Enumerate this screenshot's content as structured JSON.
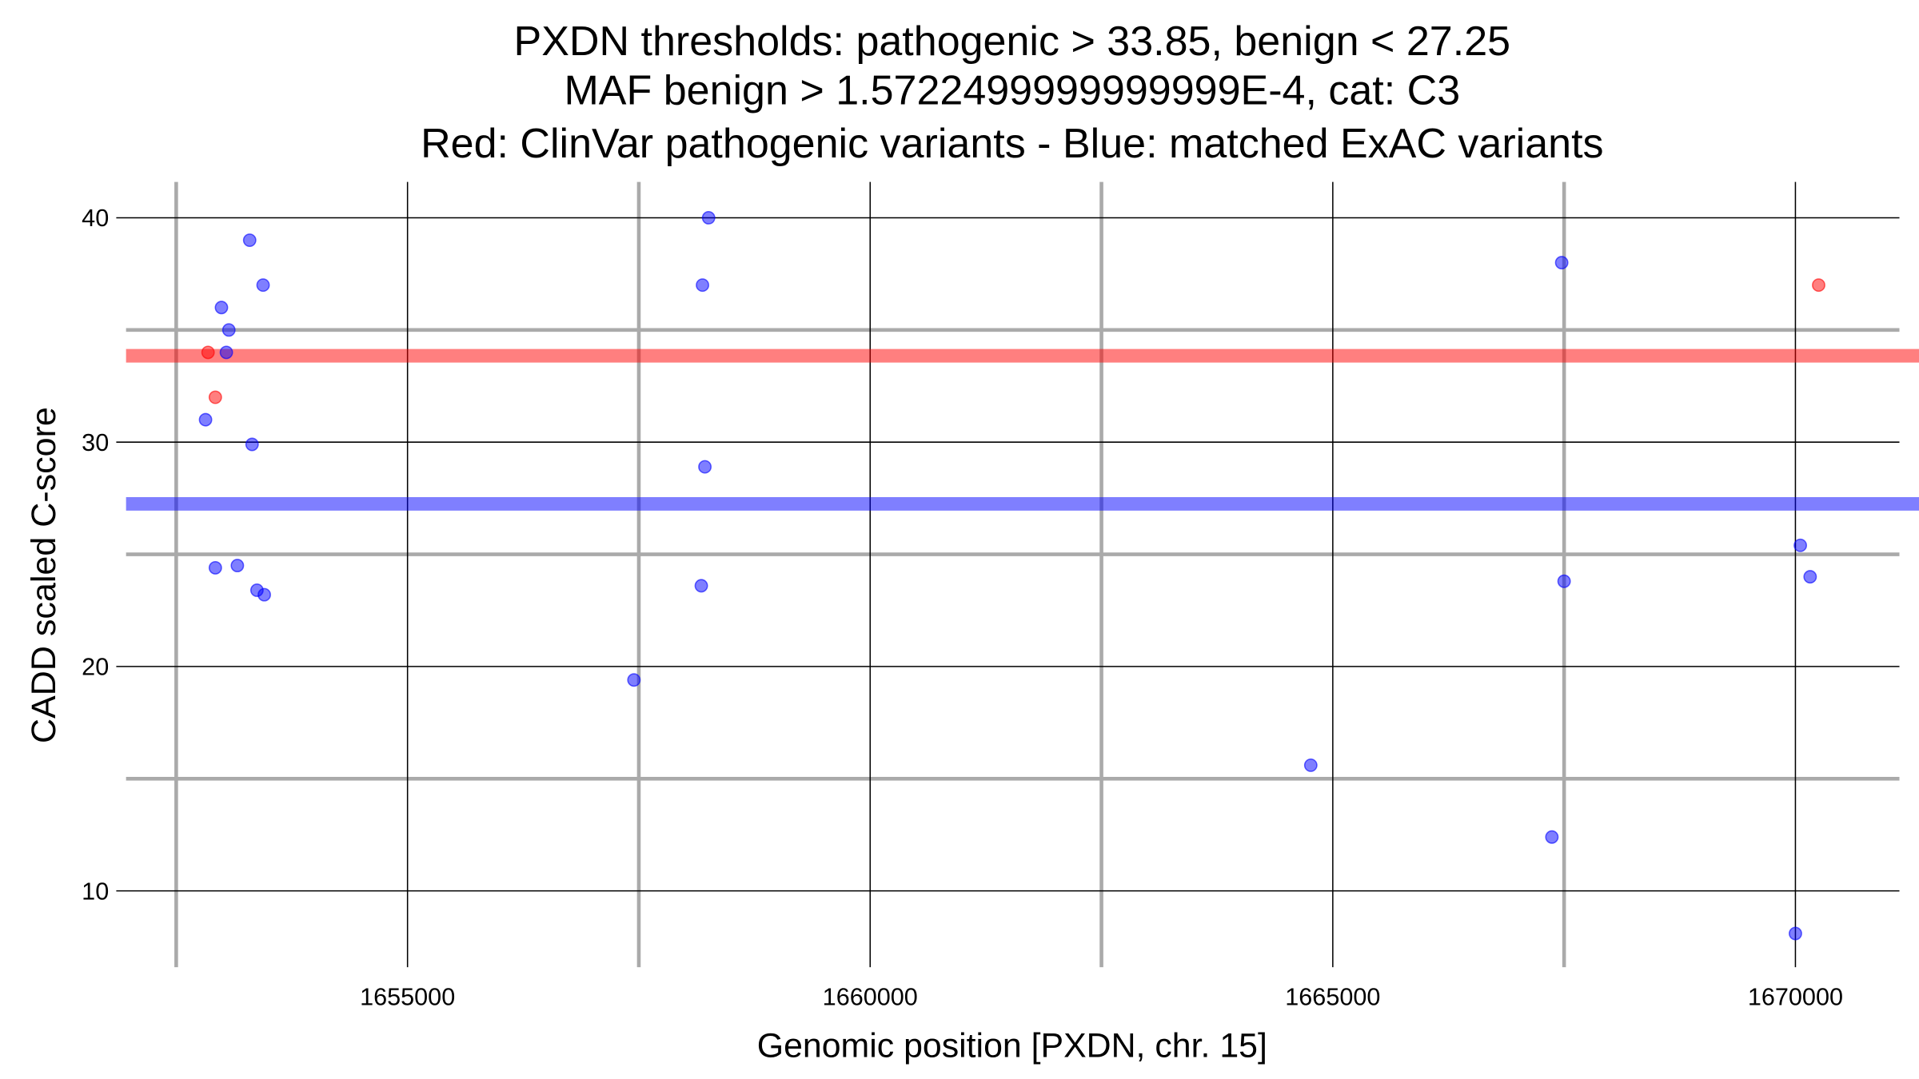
{
  "chart_data": {
    "type": "scatter",
    "title": [
      "PXDN thresholds: pathogenic > 33.85, benign < 27.25",
      "MAF benign > 1.5722499999999999E-4, cat: C3",
      "Red: ClinVar pathogenic variants - Blue: matched ExAC variants"
    ],
    "x_label": "Genomic position [PXDN, chr. 15]",
    "y_label": "CADD scaled C-score",
    "xlim": [
      1651958,
      1671124
    ],
    "ylim": [
      6.6,
      41.6
    ],
    "xticks": [
      1655000,
      1660000,
      1665000,
      1670000
    ],
    "yticks": [
      10,
      20,
      30,
      40
    ],
    "minor_xticks": [
      1652500,
      1657500,
      1662500,
      1667500
    ],
    "minor_yticks": [
      15,
      25,
      35
    ],
    "grid": true,
    "hlines": [
      {
        "value": 33.85,
        "color": "#ff0000"
      },
      {
        "value": 27.25,
        "color": "#0000ff"
      }
    ],
    "series": [
      {
        "color": "#0000ff",
        "x": [
          1652817,
          1652923,
          1652989,
          1653069,
          1653042,
          1653161,
          1653294,
          1653320,
          1653373,
          1653439,
          1653452,
          1657447,
          1658188,
          1658175,
          1658214,
          1658254,
          1664762,
          1667368,
          1667474,
          1667500,
          1670000,
          1670053,
          1670159
        ],
        "values": [
          31,
          24.4,
          36,
          35,
          34,
          24.5,
          39,
          29.9,
          23.4,
          37,
          23.2,
          19.4,
          37,
          23.6,
          28.9,
          40,
          15.6,
          12.4,
          38,
          23.8,
          8.1,
          25.4,
          24.0
        ]
      },
      {
        "color": "#ff0000",
        "x": [
          1652844,
          1652923,
          1670251
        ],
        "values": [
          34,
          32,
          37
        ]
      }
    ]
  }
}
